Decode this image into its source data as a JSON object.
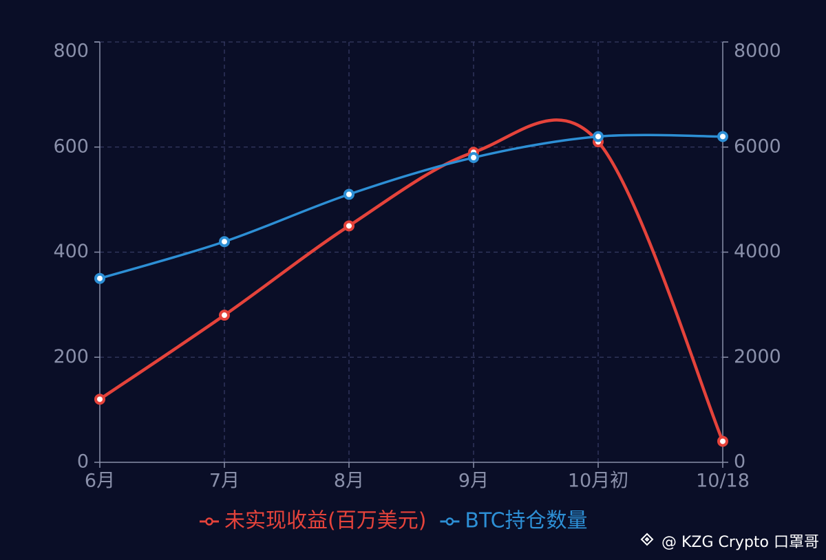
{
  "chart_data": {
    "type": "line",
    "categories": [
      "6月",
      "7月",
      "8月",
      "9月",
      "10月初",
      "10/18"
    ],
    "series": [
      {
        "name": "未实现收益(百万美元)",
        "color": "#e5433b",
        "values": [
          120,
          280,
          450,
          590,
          610,
          40
        ]
      },
      {
        "name": "BTC持仓数量",
        "color": "#2d8fd5",
        "axis": "y2",
        "values": [
          3500,
          4200,
          5100,
          5800,
          6200,
          6200
        ]
      }
    ],
    "ylim": [
      0,
      800
    ],
    "yticks": [
      0,
      200,
      400,
      600,
      800
    ],
    "y2lim": [
      0,
      8000
    ],
    "y2ticks": [
      0,
      2000,
      4000,
      6000,
      8000
    ],
    "grid": true,
    "legend": "bottom",
    "watermark": "@ KZG Crypto 口罩哥"
  }
}
